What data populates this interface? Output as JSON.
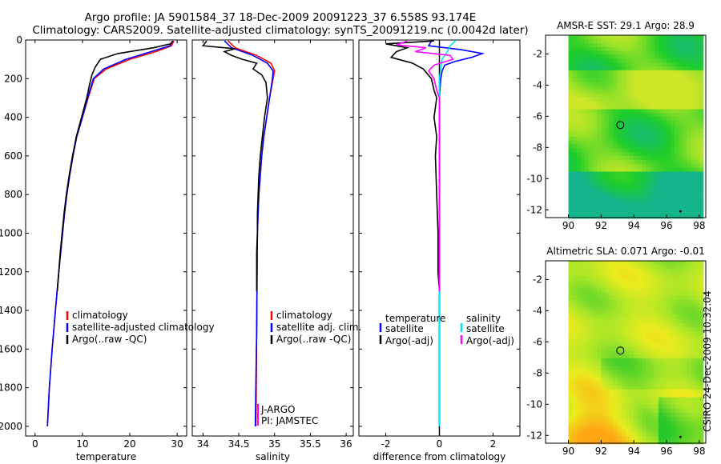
{
  "titles": {
    "line1": "Argo profile: JA 5901584_37 18-Dec-2009 20091223_37 6.558S 93.174E",
    "line2": "Climatology: CARS2009. Satellite-adjusted climatology: synTS_20091219.nc (0.0042d later)"
  },
  "stamp": "CSIRO 24-Dec-2009 10:32:04",
  "colors": {
    "climatology": "#ff0000",
    "satellite": "#0000ff",
    "argo": "#000000",
    "salinity_satellite": "#00e5ff",
    "salinity_argo": "#ff00ff",
    "marker": "#000000"
  },
  "chart_data": [
    {
      "id": "temperature",
      "type": "line",
      "xlabel": "temperature",
      "ylabel": "",
      "xlim": [
        -2,
        32
      ],
      "ylim": [
        2050,
        0
      ],
      "xticks": [
        0,
        10,
        20,
        30
      ],
      "xtick_labels": [
        "0",
        "10",
        "20",
        "30"
      ],
      "yticks": [
        0,
        200,
        400,
        600,
        800,
        1000,
        1200,
        1400,
        1600,
        1800,
        2000
      ],
      "ytick_labels": [
        "0",
        "200",
        "400",
        "600",
        "800",
        "1000",
        "1200",
        "1400",
        "1600",
        "1800",
        "2000"
      ],
      "series": [
        {
          "name": "climatology",
          "color": "#ff0000",
          "depth": [
            5,
            30,
            60,
            100,
            150,
            200,
            300,
            400,
            500,
            600,
            700,
            800,
            900,
            1000,
            1200,
            1400,
            1600,
            1800,
            2000
          ],
          "values": [
            29.3,
            28.8,
            25.5,
            20.0,
            15.0,
            12.5,
            11.2,
            10.0,
            8.8,
            8.0,
            7.3,
            6.7,
            6.2,
            5.8,
            5.0,
            4.3,
            3.6,
            3.0,
            2.6
          ]
        },
        {
          "name": "satellite-adjusted climatology",
          "color": "#0000ff",
          "depth": [
            5,
            30,
            60,
            100,
            150,
            200,
            300,
            400,
            500,
            600,
            700,
            800,
            900,
            1000,
            1200,
            1400,
            1600,
            1800,
            2000
          ],
          "values": [
            29.0,
            28.5,
            24.5,
            19.2,
            14.5,
            12.3,
            11.1,
            10.0,
            8.8,
            8.0,
            7.3,
            6.7,
            6.2,
            5.8,
            5.0,
            4.3,
            3.6,
            3.0,
            2.6
          ]
        },
        {
          "name": "Argo(..raw -QC)",
          "color": "#000000",
          "depth": [
            5,
            20,
            40,
            70,
            100,
            140,
            180,
            230,
            300,
            400,
            500,
            600,
            700,
            800,
            900,
            1000,
            1100,
            1200,
            1300
          ],
          "values": [
            29.1,
            28.6,
            25.0,
            17.5,
            13.8,
            12.7,
            12.0,
            11.5,
            10.9,
            9.8,
            8.7,
            7.9,
            7.2,
            6.6,
            6.1,
            5.7,
            5.3,
            5.0,
            4.7
          ]
        }
      ],
      "legend": {
        "position": "bottom-right",
        "entries": [
          "climatology",
          "satellite-adjusted climatology",
          "Argo(..raw -QC)"
        ]
      }
    },
    {
      "id": "salinity",
      "type": "line",
      "xlabel": "salinity",
      "xlim": [
        33.85,
        36.1
      ],
      "ylim": [
        2050,
        0
      ],
      "xticks": [
        34,
        34.5,
        35,
        35.5,
        36
      ],
      "xtick_labels": [
        "34",
        "34.5",
        "35",
        "35.5",
        "36"
      ],
      "series": [
        {
          "name": "climatology",
          "color": "#ff0000",
          "depth": [
            5,
            40,
            80,
            120,
            160,
            200,
            300,
            400,
            500,
            600,
            800,
            1000,
            1500,
            2000
          ],
          "values": [
            34.35,
            34.45,
            34.75,
            34.95,
            35.0,
            34.98,
            34.93,
            34.89,
            34.85,
            34.82,
            34.78,
            34.76,
            34.75,
            34.74
          ]
        },
        {
          "name": "satellite adj. clim.",
          "color": "#0000ff",
          "depth": [
            5,
            40,
            80,
            120,
            160,
            200,
            300,
            400,
            500,
            600,
            800,
            1000,
            1500,
            2000
          ],
          "values": [
            34.3,
            34.4,
            34.7,
            34.9,
            34.98,
            34.97,
            34.93,
            34.89,
            34.85,
            34.82,
            34.78,
            34.76,
            34.75,
            34.73
          ]
        },
        {
          "name": "Argo(..raw -QC)",
          "color": "#000000",
          "depth": [
            5,
            30,
            45,
            60,
            80,
            100,
            120,
            150,
            180,
            220,
            300,
            400,
            500,
            600,
            700,
            800,
            900,
            1000,
            1100,
            1200,
            1300
          ],
          "values": [
            34.05,
            34.0,
            34.45,
            34.3,
            34.4,
            34.55,
            34.75,
            34.7,
            34.82,
            34.88,
            34.9,
            34.86,
            34.83,
            34.8,
            34.78,
            34.77,
            34.76,
            34.76,
            34.75,
            34.75,
            34.75
          ]
        }
      ],
      "legend": {
        "position": "bottom-right",
        "entries": [
          "climatology",
          "satellite adj. clim.",
          "Argo(..raw -QC)"
        ]
      },
      "annotations": [
        "J-ARGO",
        "PI: JAMSTEC"
      ]
    },
    {
      "id": "difference",
      "type": "line",
      "xlabel": "difference from climatology",
      "xlim": [
        -3.0,
        3.0
      ],
      "ylim": [
        2050,
        0
      ],
      "xticks": [
        -2,
        0,
        2
      ],
      "xtick_labels": [
        "-2",
        "0",
        "2"
      ],
      "series": [
        {
          "name": "temperature satellite",
          "color": "#0000ff",
          "depth": [
            5,
            30,
            50,
            70,
            90,
            110,
            130,
            160,
            200,
            300,
            500,
            1000,
            2000
          ],
          "values": [
            -0.3,
            -0.4,
            0.8,
            1.6,
            1.2,
            0.6,
            0.2,
            0.1,
            0.05,
            0.0,
            0.0,
            0.0,
            0.0
          ]
        },
        {
          "name": "temperature Argo(-adj)",
          "color": "#000000",
          "depth": [
            5,
            20,
            40,
            60,
            90,
            120,
            150,
            200,
            260,
            300,
            400,
            500,
            600,
            800,
            1000,
            1200,
            1300
          ],
          "values": [
            -0.2,
            -2.0,
            -1.2,
            -1.6,
            -1.8,
            -1.0,
            -0.6,
            -0.3,
            -0.2,
            -0.1,
            -0.2,
            -0.1,
            -0.15,
            -0.1,
            -0.05,
            -0.05,
            0.0
          ]
        },
        {
          "name": "salinity satellite",
          "color": "#00e5ff",
          "depth": [
            5,
            30,
            60,
            100,
            150,
            200,
            300,
            500,
            1000,
            2000
          ],
          "values": [
            0.6,
            0.4,
            0.3,
            0.1,
            0.05,
            0.0,
            0.0,
            0.0,
            0.0,
            0.0
          ]
        },
        {
          "name": "salinity Argo(-adj)",
          "color": "#ff00ff",
          "depth": [
            5,
            25,
            40,
            60,
            80,
            100,
            130,
            160,
            200,
            260,
            300,
            500,
            1000,
            1300
          ],
          "values": [
            -1.2,
            -1.6,
            -0.5,
            -0.9,
            0.4,
            0.5,
            -0.2,
            -0.4,
            -0.2,
            -0.1,
            0.0,
            0.0,
            0.0,
            0.0
          ]
        }
      ],
      "legend": {
        "position": "bottom",
        "entries": [
          "temperature",
          "satellite",
          "Argo(-adj)",
          "salinity",
          "satellite",
          "Argo(-adj)"
        ]
      }
    },
    {
      "id": "sst_map",
      "type": "heatmap",
      "title": "AMSR-E SST: 29.1 Argo: 28.9",
      "xlim": [
        88.6,
        98.4
      ],
      "ylim": [
        -12.5,
        -0.8
      ],
      "xticks": [
        90,
        92,
        94,
        96,
        98
      ],
      "xtick_labels": [
        "90",
        "92",
        "94",
        "96",
        "98"
      ],
      "yticks": [
        -2,
        -4,
        -6,
        -8,
        -10,
        -12
      ],
      "ytick_labels": [
        "-2",
        "-4",
        "-6",
        "-8",
        "-10",
        "-12"
      ],
      "data_lon_range": [
        90,
        98.2
      ],
      "marker": {
        "lon": 93.174,
        "lat": -6.558
      }
    },
    {
      "id": "sla_map",
      "type": "heatmap",
      "title": "Altimetric SLA: 0.071 Argo: -0.01",
      "xlim": [
        88.6,
        98.4
      ],
      "ylim": [
        -12.5,
        -0.8
      ],
      "xticks": [
        90,
        92,
        94,
        96,
        98
      ],
      "xtick_labels": [
        "90",
        "92",
        "94",
        "96",
        "98"
      ],
      "yticks": [
        -2,
        -4,
        -6,
        -8,
        -10,
        -12
      ],
      "ytick_labels": [
        "-2",
        "-4",
        "-6",
        "-8",
        "-10",
        "-12"
      ],
      "data_lon_range": [
        90,
        98.2
      ],
      "marker": {
        "lon": 93.174,
        "lat": -6.558
      }
    }
  ]
}
